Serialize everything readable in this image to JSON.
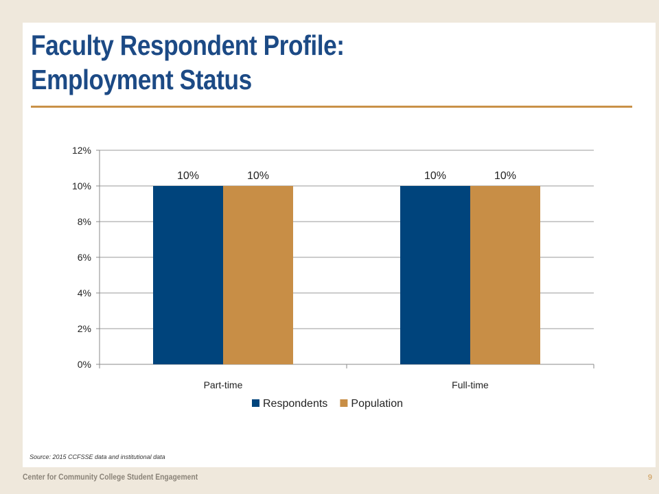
{
  "slide": {
    "title_line1": "Faculty Respondent Profile:",
    "title_line2": "Employment Status",
    "source": "Source: 2015 CCFSSE data and institutional data",
    "footer_org": "Center for Community College Student Engagement",
    "page_number": "9"
  },
  "colors": {
    "title": "#1c4a85",
    "accent": "#c99147",
    "respondents": "#00447c",
    "population": "#c88e46"
  },
  "chart_data": {
    "type": "bar",
    "categories": [
      "Part-time",
      "Full-time"
    ],
    "series": [
      {
        "name": "Respondents",
        "values": [
          10,
          10
        ],
        "labels": [
          "10%",
          "10%"
        ]
      },
      {
        "name": "Population",
        "values": [
          10,
          10
        ],
        "labels": [
          "10%",
          "10%"
        ]
      }
    ],
    "ylim": [
      0,
      12
    ],
    "yticks": [
      "0%",
      "2%",
      "4%",
      "6%",
      "8%",
      "10%",
      "12%"
    ],
    "grid": true,
    "legend": "bottom"
  }
}
